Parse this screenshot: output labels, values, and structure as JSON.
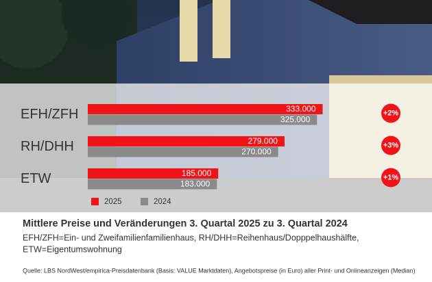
{
  "chart_data": {
    "type": "bar",
    "orientation": "horizontal",
    "title": "Mittlere Preise und Veränderungen 3. Quartal 2025 zu 3. Quartal 2024",
    "notes": [
      "EFH/ZFH=Ein- und Zweifamilienfamilienhaus, RH/DHH=Reihenhaus/Dopppelhaushälfte,",
      "ETW=Eigentumswohnung"
    ],
    "source": "Quelle: LBS NordWest/empirica-Preisdatenbank (Basis: VALUE Marktdaten), Angebotspreise (in Euro) aller Print- und Onlineanzeigen (Median)",
    "categories": [
      "EFH/ZFH",
      "RH/DHH",
      "ETW"
    ],
    "series": [
      {
        "name": "2025",
        "color": "#f01418",
        "values": [
          333000,
          279000,
          185000
        ],
        "value_labels": [
          "333.000",
          "279.000",
          "185.000"
        ]
      },
      {
        "name": "2024",
        "color": "#8a8a8a",
        "values": [
          325000,
          270000,
          183000
        ],
        "value_labels": [
          "325.000",
          "270.000",
          "183.000"
        ]
      }
    ],
    "change_labels": [
      "+2%",
      "+3%",
      "+1%"
    ],
    "xlim": [
      0,
      350000
    ]
  }
}
